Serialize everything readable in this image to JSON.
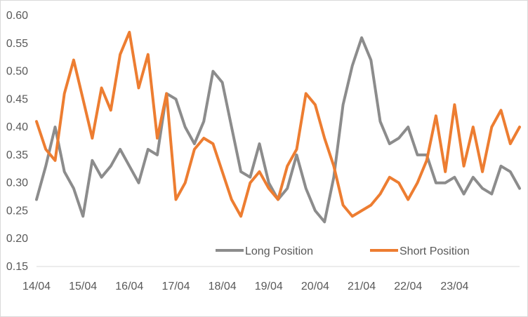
{
  "chart_data": {
    "type": "line",
    "title": "",
    "xlabel": "",
    "ylabel": "",
    "ylim": [
      0.15,
      0.6
    ],
    "y_ticks": [
      "0.15",
      "0.20",
      "0.25",
      "0.30",
      "0.35",
      "0.40",
      "0.45",
      "0.50",
      "0.55",
      "0.60"
    ],
    "x_ticks": [
      "14/04",
      "15/04",
      "16/04",
      "17/04",
      "18/04",
      "19/04",
      "20/04",
      "21/04",
      "22/04",
      "23/04"
    ],
    "xlim": [
      0,
      10.4
    ],
    "grid": false,
    "legend": "bottom-right",
    "series": [
      {
        "name": "Long Position",
        "color": "#8c8c8c",
        "x": [
          0.0,
          0.2,
          0.4,
          0.6,
          0.8,
          1.0,
          1.2,
          1.4,
          1.6,
          1.8,
          2.0,
          2.2,
          2.4,
          2.6,
          2.8,
          3.0,
          3.2,
          3.4,
          3.6,
          3.8,
          4.0,
          4.2,
          4.4,
          4.6,
          4.8,
          5.0,
          5.2,
          5.4,
          5.6,
          5.8,
          6.0,
          6.2,
          6.4,
          6.6,
          6.8,
          7.0,
          7.2,
          7.4,
          7.6,
          7.8,
          8.0,
          8.2,
          8.4,
          8.6,
          8.8,
          9.0,
          9.2,
          9.4,
          9.6,
          9.8,
          10.0,
          10.2,
          10.4
        ],
        "values": [
          0.27,
          0.33,
          0.4,
          0.32,
          0.29,
          0.24,
          0.34,
          0.31,
          0.33,
          0.36,
          0.33,
          0.3,
          0.36,
          0.35,
          0.46,
          0.45,
          0.4,
          0.37,
          0.41,
          0.5,
          0.48,
          0.4,
          0.32,
          0.31,
          0.37,
          0.3,
          0.27,
          0.29,
          0.35,
          0.29,
          0.25,
          0.23,
          0.31,
          0.44,
          0.51,
          0.56,
          0.52,
          0.41,
          0.37,
          0.38,
          0.4,
          0.35,
          0.35,
          0.3,
          0.3,
          0.31,
          0.28,
          0.31,
          0.29,
          0.28,
          0.33,
          0.32,
          0.29
        ]
      },
      {
        "name": "Short Position",
        "color": "#ed7d31",
        "x": [
          0.0,
          0.2,
          0.4,
          0.6,
          0.8,
          1.0,
          1.2,
          1.4,
          1.6,
          1.8,
          2.0,
          2.2,
          2.4,
          2.6,
          2.8,
          3.0,
          3.2,
          3.4,
          3.6,
          3.8,
          4.0,
          4.2,
          4.4,
          4.6,
          4.8,
          5.0,
          5.2,
          5.4,
          5.6,
          5.8,
          6.0,
          6.2,
          6.4,
          6.6,
          6.8,
          7.0,
          7.2,
          7.4,
          7.6,
          7.8,
          8.0,
          8.2,
          8.4,
          8.6,
          8.8,
          9.0,
          9.2,
          9.4,
          9.6,
          9.8,
          10.0,
          10.2,
          10.4
        ],
        "values": [
          0.41,
          0.36,
          0.34,
          0.46,
          0.52,
          0.45,
          0.38,
          0.47,
          0.43,
          0.53,
          0.57,
          0.47,
          0.53,
          0.38,
          0.46,
          0.27,
          0.3,
          0.36,
          0.38,
          0.37,
          0.32,
          0.27,
          0.24,
          0.3,
          0.32,
          0.29,
          0.27,
          0.33,
          0.36,
          0.46,
          0.44,
          0.38,
          0.33,
          0.26,
          0.24,
          0.25,
          0.26,
          0.28,
          0.31,
          0.3,
          0.27,
          0.3,
          0.34,
          0.42,
          0.32,
          0.44,
          0.33,
          0.4,
          0.32,
          0.4,
          0.43,
          0.37,
          0.4
        ]
      }
    ]
  }
}
